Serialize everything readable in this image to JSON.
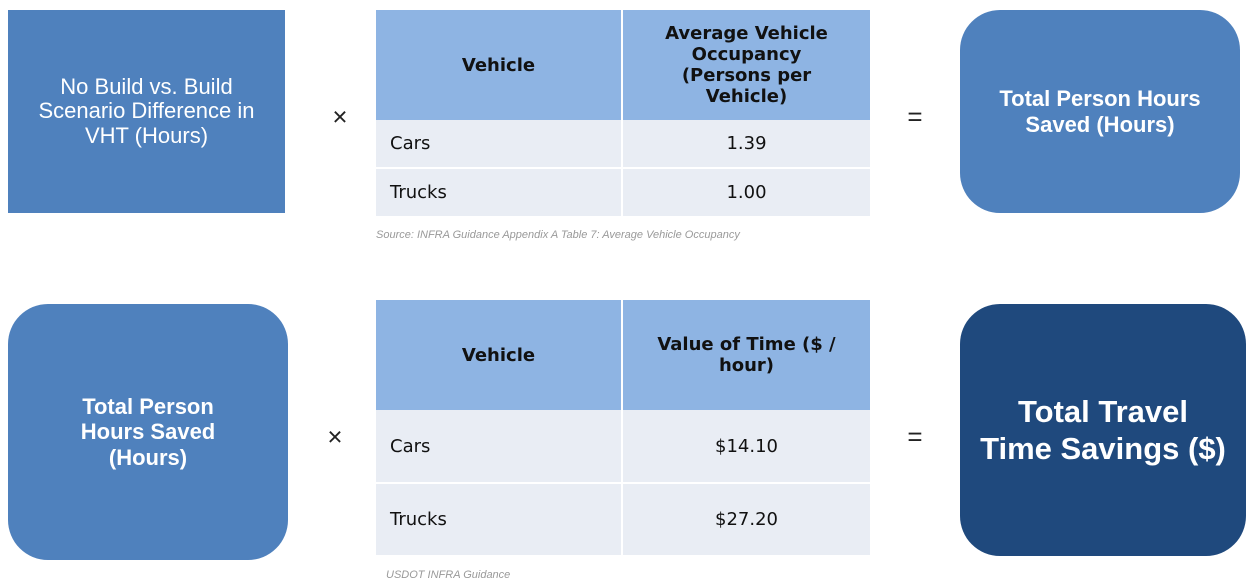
{
  "rows": [
    {
      "input": "No Build vs. Build Scenario Difference in VHT (Hours)",
      "operator_1": "×",
      "table": {
        "header": [
          "Vehicle",
          "Average Vehicle Occupancy (Persons per Vehicle)"
        ],
        "rows": [
          [
            "Cars",
            "1.39"
          ],
          [
            "Trucks",
            "1.00"
          ]
        ]
      },
      "source": "Source: INFRA Guidance Appendix A Table 7: Average Vehicle Occupancy",
      "operator_2": "=",
      "output": "Total Person Hours Saved (Hours)"
    },
    {
      "input": "Total Person Hours Saved (Hours)",
      "operator_1": "×",
      "table": {
        "header": [
          "Vehicle",
          "Value of Time ($ / hour)"
        ],
        "rows": [
          [
            "Cars",
            "$14.10"
          ],
          [
            "Trucks",
            "$27.20"
          ]
        ]
      },
      "source": "USDOT INFRA Guidance",
      "operator_2": "=",
      "output": "Total Travel Time Savings ($)"
    }
  ]
}
